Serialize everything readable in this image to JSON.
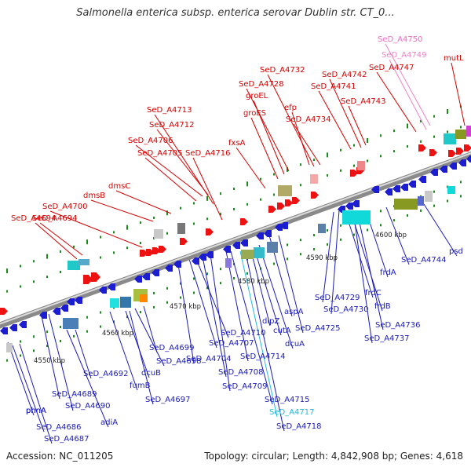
{
  "title": "Salmonella enterica subsp. enterica serovar Dublin str. CT_0...",
  "footer": {
    "accession": "Accession: NC_011205",
    "summary": "Topology: circular; Length: 4,842,908 bp; Genes: 4,618"
  },
  "colors": {
    "forward_label": "#d40000",
    "reverse_label": "#1a1ab8",
    "rna_label": "#ee82c8",
    "highlight_label": "#22bbdd",
    "backbone": "#8a8a8a",
    "tick": "#1a8a1a"
  },
  "scale": {
    "ticks": [
      "4550 kbp",
      "4560 kbp",
      "4570 kbp",
      "4580 kbp",
      "4590 kbp",
      "4600 kbp"
    ]
  },
  "genes_forward": [
    "SeD_A4694",
    "SeD_A4700",
    "dmsB",
    "dmsC",
    "SeD_A4705",
    "SeD_A4706",
    "SeD_A4712",
    "SeD_A4713",
    "SeD_A4716",
    "fxsA",
    "groES",
    "groEL",
    "SeD_A4728",
    "SeD_A4732",
    "efp",
    "SeD_A4734",
    "SeD_A4741",
    "SeD_A4742",
    "SeD_A4743",
    "SeD_A4747",
    "mutL"
  ],
  "genes_rna": [
    "SeD_A4750",
    "SeD_A4749"
  ],
  "genes_reverse": [
    "phnA",
    "SeD_A4686",
    "SeD_A4687",
    "SeD_A4689",
    "SeD_A4690",
    "adiA",
    "SeD_A4692",
    "fumB",
    "dcuB",
    "SeD_A4697",
    "SeD_A4698",
    "SeD_A4699",
    "SeD_A4704",
    "SeD_A4707",
    "SeD_A4708",
    "SeD_A4709",
    "SeD_A4710",
    "SeD_A4714",
    "SeD_A4715",
    "SeD_A4717",
    "SeD_A4718",
    "dipZ",
    "cutA",
    "dcuA",
    "aspA",
    "SeD_A4725",
    "SeD_A4729",
    "SeD_A4730",
    "frdC",
    "frdB",
    "frdA",
    "SeD_A4736",
    "SeD_A4737",
    "SeD_A4744",
    "psd"
  ]
}
